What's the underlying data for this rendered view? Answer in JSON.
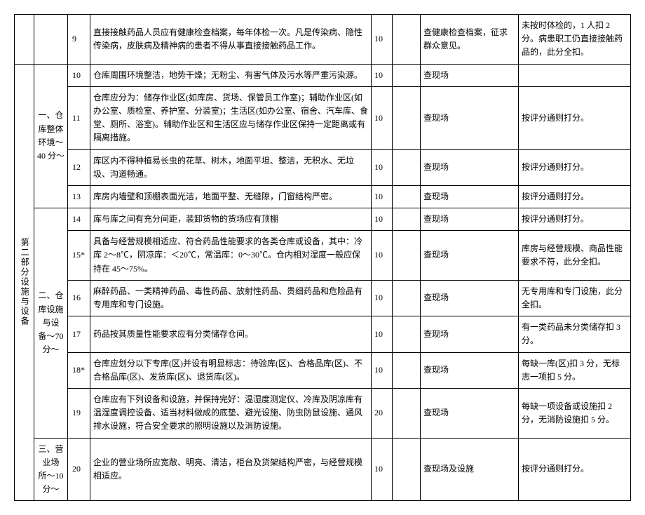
{
  "table": {
    "columns": {
      "part_width": 28,
      "section_width": 48,
      "num_width": 32,
      "score_width": 30,
      "blank_width": 40,
      "check_width": 140,
      "remark_width": 160
    },
    "rows": [
      {
        "num": "9",
        "desc": "直接接触药品人员应有健康检查档案，每年体检一次。凡是传染病、隐性传染病，皮肤病及精神病的患者不得从事直接接触药品工作。",
        "score": "10",
        "check": "查健康检查档案，征求群众意见。",
        "remark": "未按时体检的，1 人扣 2 分。病患职工仍直接接触药品的，此分全扣。"
      },
      {
        "part": "第二部分设施与设备",
        "section": "一、仓库整体环境〜40 分〜",
        "num": "10",
        "desc": "仓库周围环境整洁，地势干燥；无粉尘、有害气体及污水等严重污染源。",
        "score": "10",
        "check": "查现场",
        "remark": ""
      },
      {
        "num": "11",
        "desc": "仓库应分为：储存作业区(如库房、货场、保管员工作室)；辅助作业区(如办公室、质检室、养护室、分装室)；生活区(如办公室、宿舍、汽车库、食堂、厕所、浴室)。辅助作业区和生活区应与储存作业区保持一定距离或有隔离措施。",
        "score": "10",
        "check": "查现场",
        "remark": "按评分通则打分。"
      },
      {
        "num": "12",
        "desc": "库区内不得种植易长虫的花草、树木，地面平坦、整洁，无积水、无垃圾、沟道畅通。",
        "score": "10",
        "check": "查现场",
        "remark": "按评分通则打分。"
      },
      {
        "num": "13",
        "desc": "库房内墙壁和顶棚表面光洁，地面平整、无缝隙，门窗结构严密。",
        "score": "10",
        "check": "查现场",
        "remark": "按评分通则打分。"
      },
      {
        "section": "二、仓库设施与设备〜70 分〜",
        "num": "14",
        "desc": "库与库之间有充分间距，装卸货物的货场应有顶棚",
        "score": "10",
        "check": "查现场",
        "remark": "按评分通则打分。"
      },
      {
        "num": "15*",
        "desc": "具备与经营规模相适应、符合药品性能要求的各类仓库或设备，其中：冷库 2～8℃，阴凉库：＜20℃，常温库：0～30℃。仓内相对湿度一般应保持在 45～75%。",
        "score": "10",
        "check": "查现场",
        "remark": "库房与经营规模、商品性能要求不符，此分全扣。"
      },
      {
        "num": "16",
        "desc": "麻醉药品、一类精神药品、毒性药品、放射性药品、贵细药品和危险品有专用库和专门设施。",
        "score": "10",
        "check": "查现场",
        "remark": "无专用库和专门设施，此分全扣。"
      },
      {
        "num": "17",
        "desc": "药品按其质量性能要求应有分类储存仓间。",
        "score": "10",
        "check": "查现场",
        "remark": "有一类药品未分类储存扣 3 分。"
      },
      {
        "num": "18*",
        "desc": "仓库应划分以下专库(区)并设有明显标志：待验库(区)、合格品库(区)、不合格品库(区)、发货库(区)、退货库(区)。",
        "score": "10",
        "check": "查现场",
        "remark": "每缺一库(区)扣 3 分，无标志一项扣 5 分。"
      },
      {
        "num": "19",
        "desc": "仓库应有下列设备和设施，并保持完好：温湿度测定仪、冷库及阴凉库有温湿度调控设备、适当材料做成的底垫、避光设施、防虫防鼠设施、通风排水设施，符合安全要求的照明设施以及消防设施。",
        "score": "20",
        "check": "查现场",
        "remark": "每缺一项设备或设施扣 2 分，无消防设施扣 5 分。"
      },
      {
        "section": "三、营业场所〜10 分〜",
        "num": "20",
        "desc": "企业的营业场所应宽敞、明亮、清洁，柜台及货架结构严密，与经营规模相适应。",
        "score": "10",
        "check": "查现场及设施",
        "remark": "按评分通则打分。"
      }
    ]
  }
}
